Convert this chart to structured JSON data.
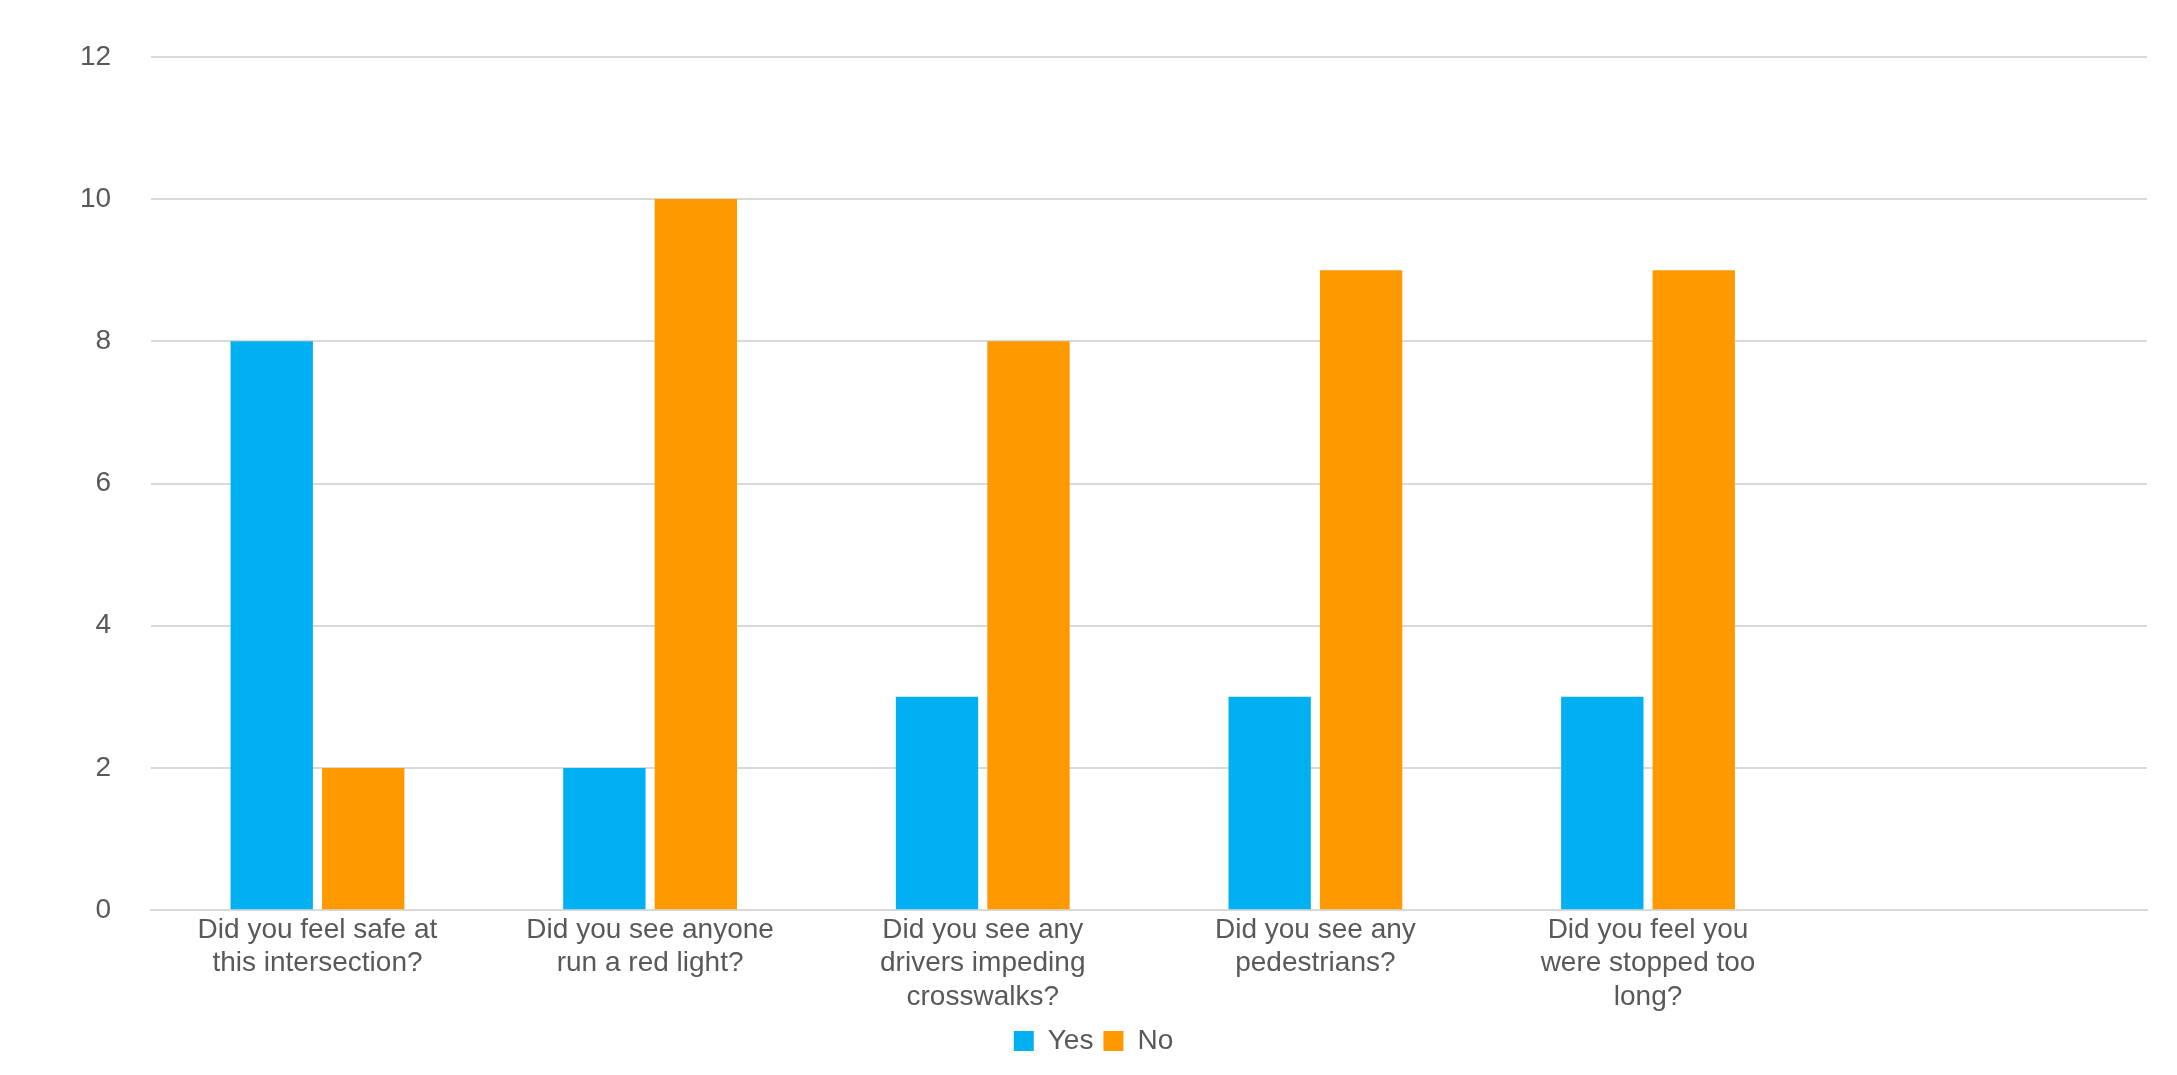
{
  "chart_data": {
    "type": "bar",
    "categories": [
      "Did you feel safe at this intersection?",
      "Did you see anyone run a red light?",
      "Did you see any drivers impeding crosswalks?",
      "Did you see any pedestrians?",
      "Did you feel you were stopped too long?",
      null
    ],
    "series": [
      {
        "name": "Yes",
        "color": "#00b0f0",
        "values": [
          8,
          2,
          3,
          3,
          3,
          null
        ]
      },
      {
        "name": "No",
        "color": "#ff9900",
        "values": [
          2,
          10,
          8,
          9,
          9,
          null
        ]
      }
    ],
    "ylim": [
      0,
      12
    ],
    "yticks": [
      0,
      2,
      4,
      6,
      8,
      10,
      12
    ],
    "grid": "y",
    "legend": "bottom"
  }
}
